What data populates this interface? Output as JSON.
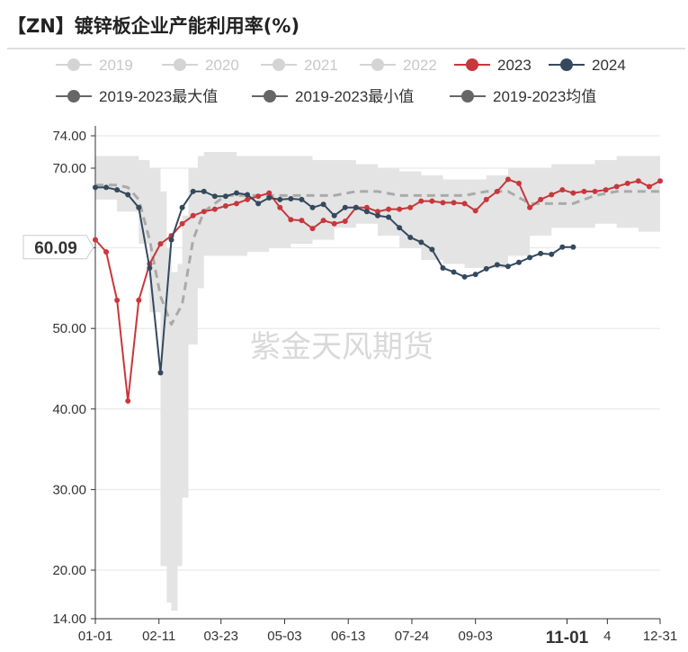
{
  "chart_data": {
    "type": "line",
    "title": "【ZN】镀锌板企业产能利用率(%)",
    "watermark": "紫金天风期货",
    "pointer_label": "60.09",
    "pointer_value": 60.09,
    "y_ticks": [
      "74.00",
      "70.00",
      "60.00",
      "50.00",
      "40.00",
      "30.00",
      "20.00",
      "14.00"
    ],
    "y_tick_values": [
      74,
      70,
      60,
      50,
      40,
      30,
      20,
      14
    ],
    "ylim": [
      14,
      74
    ],
    "x_ticks": [
      "01-01",
      "02-11",
      "03-23",
      "05-03",
      "06-13",
      "07-24",
      "09-03",
      "11-01",
      "4",
      "12-31"
    ],
    "x_tick_days": [
      0,
      41,
      81,
      122,
      163,
      204,
      245,
      304,
      330,
      364
    ],
    "x_tick_bold": [
      false,
      false,
      false,
      false,
      false,
      false,
      false,
      true,
      false,
      false
    ],
    "xlim": [
      0,
      364
    ],
    "legend": [
      {
        "label": "2019",
        "color": "#cfcfcf",
        "active": false
      },
      {
        "label": "2020",
        "color": "#cfcfcf",
        "active": false
      },
      {
        "label": "2021",
        "color": "#cfcfcf",
        "active": false
      },
      {
        "label": "2022",
        "color": "#cfcfcf",
        "active": false
      },
      {
        "label": "2023",
        "color": "#c8373b",
        "active": true
      },
      {
        "label": "2024",
        "color": "#34495e",
        "active": true
      },
      {
        "label": "2019-2023最大值",
        "color": "#666666",
        "active": true
      },
      {
        "label": "2019-2023最小值",
        "color": "#666666",
        "active": true
      },
      {
        "label": "2019-2023均值",
        "color": "#666666",
        "active": true
      }
    ],
    "band": {
      "x": [
        0,
        14,
        28,
        35,
        42,
        46,
        49,
        53,
        56,
        60,
        66,
        70,
        77,
        84,
        91,
        98,
        112,
        126,
        140,
        154,
        168,
        182,
        196,
        210,
        224,
        238,
        252,
        266,
        280,
        294,
        308,
        322,
        336,
        350,
        364
      ],
      "max": [
        71.5,
        71.5,
        71.0,
        70.0,
        67.0,
        60.0,
        57.0,
        58.0,
        64.0,
        70.0,
        71.5,
        72.0,
        72.0,
        72.0,
        71.5,
        71.5,
        71.5,
        71.5,
        71.0,
        71.0,
        70.5,
        70.0,
        69.5,
        69.0,
        68.5,
        68.5,
        69.0,
        70.0,
        70.0,
        70.5,
        70.5,
        71.0,
        71.5,
        71.5,
        71.5
      ],
      "min": [
        66.0,
        64.5,
        60.5,
        52.0,
        20.5,
        16.0,
        15.0,
        20.5,
        29.0,
        48.0,
        55.0,
        59.0,
        59.0,
        59.0,
        59.0,
        59.5,
        60.0,
        60.5,
        61.0,
        62.5,
        63.0,
        61.5,
        60.0,
        58.5,
        58.0,
        57.5,
        57.5,
        59.0,
        61.5,
        62.5,
        62.5,
        63.0,
        62.5,
        62.0,
        62.0
      ]
    },
    "series": [
      {
        "name": "2019-2023均值",
        "color": "#aaaaaa",
        "dashed": true,
        "x": [
          0,
          14,
          21,
          28,
          35,
          42,
          49,
          56,
          63,
          70,
          77,
          84,
          91,
          98,
          112,
          126,
          140,
          154,
          168,
          182,
          196,
          210,
          224,
          238,
          252,
          266,
          280,
          294,
          308,
          322,
          336,
          350,
          364
        ],
        "values": [
          67.8,
          67.8,
          67.5,
          66.0,
          61.0,
          54.0,
          50.5,
          53.0,
          61.0,
          64.5,
          65.5,
          66.5,
          66.5,
          66.5,
          66.5,
          66.5,
          66.5,
          66.5,
          67.0,
          67.0,
          66.5,
          66.5,
          66.5,
          66.5,
          67.0,
          67.0,
          65.5,
          65.5,
          65.5,
          66.5,
          67.0,
          67.0,
          67.0
        ]
      },
      {
        "name": "2023",
        "color": "#c8373b",
        "dashed": false,
        "x": [
          0,
          7,
          14,
          21,
          28,
          35,
          42,
          49,
          56,
          63,
          70,
          77,
          84,
          91,
          98,
          105,
          112,
          119,
          126,
          133,
          140,
          147,
          154,
          161,
          168,
          175,
          182,
          189,
          196,
          203,
          210,
          217,
          224,
          231,
          238,
          245,
          252,
          259,
          266,
          273,
          280,
          287,
          294,
          301,
          308,
          315,
          322,
          329,
          336,
          343,
          350,
          357,
          364
        ],
        "values": [
          61.0,
          59.5,
          53.5,
          41.0,
          53.5,
          58.0,
          60.5,
          61.5,
          63.0,
          64.0,
          64.5,
          64.8,
          65.2,
          65.5,
          66.0,
          66.4,
          66.8,
          65.0,
          63.5,
          63.4,
          62.4,
          63.4,
          63.0,
          63.3,
          65.0,
          65.0,
          64.5,
          64.8,
          64.8,
          65.0,
          65.8,
          65.8,
          65.6,
          65.6,
          65.5,
          64.6,
          66.0,
          67.0,
          68.5,
          68.0,
          65.0,
          66.0,
          66.6,
          67.2,
          66.8,
          67.0,
          67.0,
          67.2,
          67.6,
          68.0,
          68.3,
          67.6,
          68.3
        ]
      },
      {
        "name": "2024",
        "color": "#34495e",
        "dashed": false,
        "x": [
          0,
          7,
          14,
          21,
          28,
          35,
          42,
          49,
          56,
          63,
          70,
          77,
          84,
          91,
          98,
          105,
          112,
          119,
          126,
          133,
          140,
          147,
          154,
          161,
          168,
          175,
          182,
          189,
          196,
          203,
          210,
          217,
          224,
          231,
          238,
          245,
          252,
          259,
          266,
          273,
          280,
          287,
          294,
          301,
          308
        ],
        "values": [
          67.5,
          67.5,
          67.2,
          66.6,
          65.0,
          57.5,
          44.5,
          61.0,
          65.0,
          67.0,
          67.0,
          66.4,
          66.4,
          66.8,
          66.6,
          65.5,
          66.2,
          66.0,
          66.1,
          66.0,
          65.0,
          65.4,
          64.0,
          65.0,
          65.0,
          64.5,
          64.0,
          63.8,
          62.5,
          61.3,
          60.7,
          59.8,
          57.5,
          57.0,
          56.4,
          56.7,
          57.4,
          57.9,
          57.7,
          58.2,
          58.8,
          59.3,
          59.2,
          60.09,
          60.09
        ]
      }
    ]
  }
}
